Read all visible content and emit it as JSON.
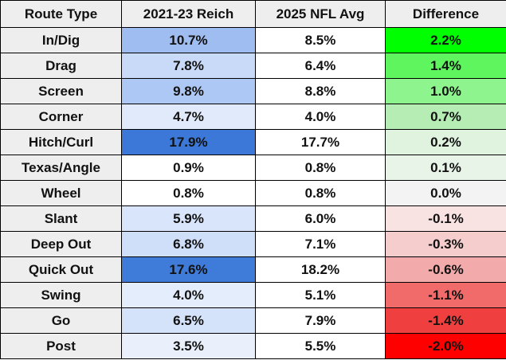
{
  "table": {
    "headers": [
      "Route Type",
      "2021-23 Reich",
      "2025 NFL Avg",
      "Difference"
    ],
    "rows": [
      [
        "In/Dig",
        "10.7%",
        "8.5%",
        "2.2%"
      ],
      [
        "Drag",
        "7.8%",
        "6.4%",
        "1.4%"
      ],
      [
        "Screen",
        "9.8%",
        "8.8%",
        "1.0%"
      ],
      [
        "Corner",
        "4.7%",
        "4.0%",
        "0.7%"
      ],
      [
        "Hitch/Curl",
        "17.9%",
        "17.7%",
        "0.2%"
      ],
      [
        "Texas/Angle",
        "0.9%",
        "0.8%",
        "0.1%"
      ],
      [
        "Wheel",
        "0.8%",
        "0.8%",
        "0.0%"
      ],
      [
        "Slant",
        "5.9%",
        "6.0%",
        "-0.1%"
      ],
      [
        "Deep Out",
        "6.8%",
        "7.1%",
        "-0.3%"
      ],
      [
        "Quick Out",
        "17.6%",
        "18.2%",
        "-0.6%"
      ],
      [
        "Swing",
        "4.0%",
        "5.1%",
        "-1.1%"
      ],
      [
        "Go",
        "6.5%",
        "7.9%",
        "-1.4%"
      ],
      [
        "Post",
        "3.5%",
        "5.5%",
        "-2.0%"
      ]
    ],
    "reich_fills": [
      "#a0bdf2",
      "#c9daf8",
      "#aec8f5",
      "#e1eafb",
      "#3c78d8",
      "#ffffff",
      "#ffffff",
      "#d9e5fa",
      "#d0dff9",
      "#3f7bd9",
      "#e4edfc",
      "#d5e3fa",
      "#e9f0fc"
    ],
    "difference_fills": [
      "#00ff00",
      "#5ef55e",
      "#8ef58e",
      "#b5edb5",
      "#dff3df",
      "#e8f4e8",
      "#f3f3f3",
      "#f8e2e2",
      "#f5cdcd",
      "#f3aaaa",
      "#f16b6b",
      "#f03f3f",
      "#ff0000"
    ]
  }
}
